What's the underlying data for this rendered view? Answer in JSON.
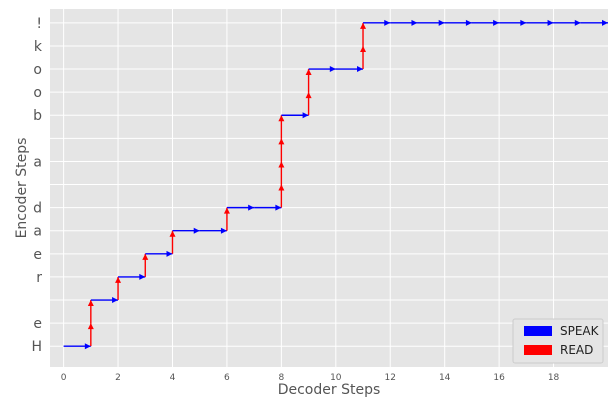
{
  "chart_data": {
    "type": "line",
    "xlabel": "Decoder Steps",
    "ylabel": "Encoder Steps",
    "xlim": [
      -0.5,
      20
    ],
    "ylim": [
      -0.9,
      14.6
    ],
    "xticks": [
      0,
      2,
      4,
      6,
      8,
      10,
      12,
      14,
      16,
      18
    ],
    "yticklabels": [
      "H",
      "e",
      "",
      "r",
      "e",
      "a",
      "d",
      "",
      "a",
      "",
      "b",
      "o",
      "o",
      "k",
      "!"
    ],
    "grid": true,
    "legend": {
      "placement": "lower-right",
      "entries": [
        "SPEAK",
        "READ"
      ]
    },
    "colors": {
      "SPEAK": "#0000ff",
      "READ": "#ff0000",
      "background": "#e5e5e5",
      "grid": "#ffffff"
    },
    "path": [
      [
        0,
        0
      ],
      [
        1,
        0
      ],
      [
        1,
        1
      ],
      [
        1,
        2
      ],
      [
        2,
        2
      ],
      [
        2,
        3
      ],
      [
        3,
        3
      ],
      [
        3,
        4
      ],
      [
        4,
        4
      ],
      [
        4,
        5
      ],
      [
        5,
        5
      ],
      [
        6,
        5
      ],
      [
        6,
        6
      ],
      [
        7,
        6
      ],
      [
        8,
        6
      ],
      [
        8,
        7
      ],
      [
        8,
        8
      ],
      [
        8,
        9
      ],
      [
        8,
        10
      ],
      [
        9,
        10
      ],
      [
        9,
        11
      ],
      [
        9,
        12
      ],
      [
        10,
        12
      ],
      [
        11,
        12
      ],
      [
        11,
        13
      ],
      [
        11,
        14
      ],
      [
        12,
        14
      ],
      [
        13,
        14
      ],
      [
        14,
        14
      ],
      [
        15,
        14
      ],
      [
        16,
        14
      ],
      [
        17,
        14
      ],
      [
        18,
        14
      ],
      [
        19,
        14
      ],
      [
        20,
        14
      ]
    ]
  }
}
